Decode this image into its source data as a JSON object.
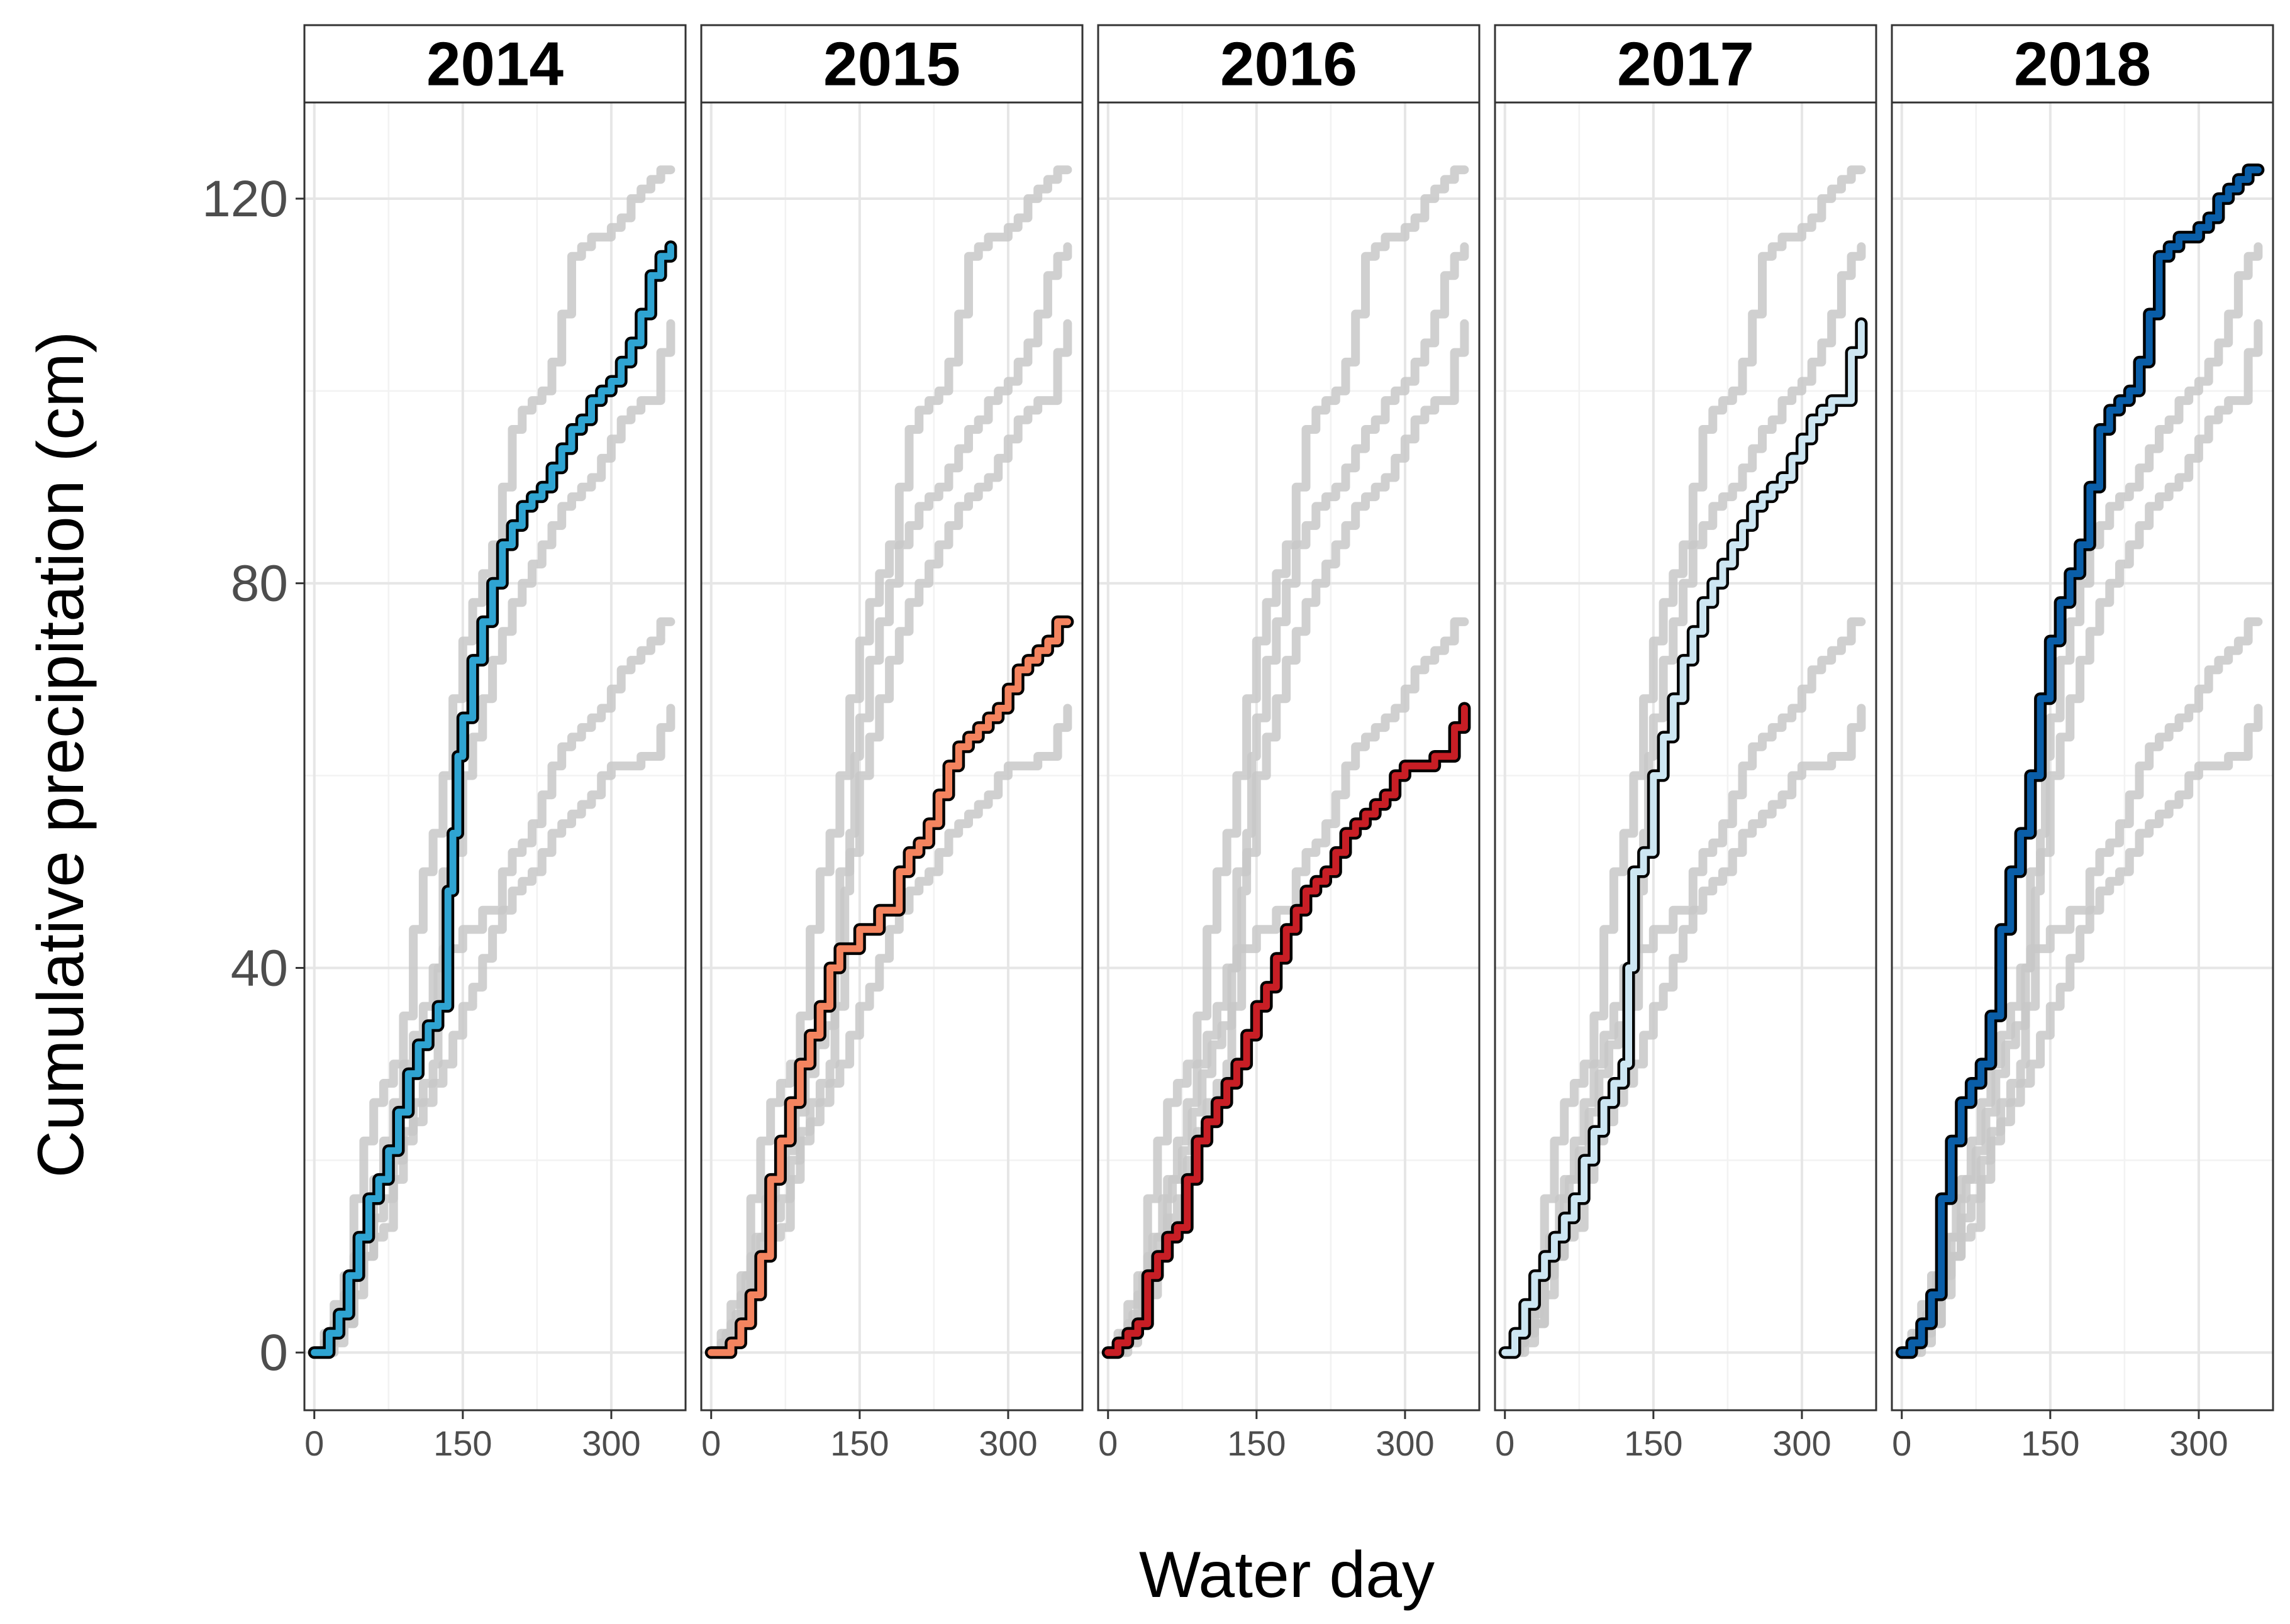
{
  "chart_data": {
    "type": "line",
    "title": "",
    "xlabel": "Water day",
    "ylabel": "Cumulative precipitation (cm)",
    "xlim": [
      -10,
      375
    ],
    "ylim": [
      -6,
      130
    ],
    "x_ticks": [
      0,
      150,
      300
    ],
    "x_tick_labels": [
      "0",
      "150",
      "300"
    ],
    "y_ticks": [
      0,
      40,
      80,
      120
    ],
    "y_tick_labels": [
      "0",
      "40",
      "80",
      "120"
    ],
    "grid": true,
    "facets": [
      "2014",
      "2015",
      "2016",
      "2017",
      "2018"
    ],
    "background_series_color": "#c8c8c8",
    "highlight_outline_color": "#000000",
    "series": [
      {
        "name": "2014",
        "color": "#2fa4d2",
        "x": [
          0,
          15,
          25,
          35,
          45,
          55,
          65,
          75,
          85,
          95,
          105,
          115,
          125,
          135,
          140,
          145,
          150,
          160,
          170,
          180,
          190,
          200,
          210,
          220,
          230,
          240,
          250,
          260,
          270,
          280,
          290,
          300,
          310,
          320,
          330,
          340,
          350,
          360
        ],
        "values": [
          0,
          2,
          4,
          8,
          12,
          16,
          18,
          21,
          25,
          29,
          32,
          34,
          36,
          48,
          54,
          62,
          66,
          72,
          76,
          80,
          84,
          86,
          88,
          89,
          90,
          92,
          94,
          96,
          97,
          99,
          100,
          101,
          103,
          105,
          108,
          112,
          114,
          115
        ]
      },
      {
        "name": "2015",
        "color": "#f4845f",
        "x": [
          0,
          10,
          20,
          30,
          40,
          50,
          60,
          70,
          80,
          90,
          100,
          110,
          120,
          130,
          150,
          170,
          190,
          200,
          210,
          220,
          230,
          240,
          250,
          260,
          270,
          280,
          290,
          300,
          310,
          320,
          330,
          340,
          350,
          360
        ],
        "values": [
          0,
          0,
          1,
          3,
          6,
          10,
          18,
          22,
          26,
          30,
          33,
          36,
          40,
          42,
          44,
          46,
          50,
          52,
          53,
          55,
          58,
          61,
          63,
          64,
          65,
          66,
          67,
          69,
          71,
          72,
          73,
          74,
          76,
          76
        ]
      },
      {
        "name": "2016",
        "color": "#c81e25",
        "x": [
          0,
          10,
          20,
          30,
          40,
          50,
          60,
          70,
          80,
          90,
          100,
          110,
          120,
          130,
          140,
          150,
          160,
          170,
          180,
          190,
          200,
          210,
          220,
          230,
          240,
          250,
          260,
          270,
          280,
          290,
          300,
          310,
          320,
          330,
          340,
          350,
          360
        ],
        "values": [
          0,
          1,
          2,
          3,
          8,
          10,
          12,
          13,
          18,
          22,
          24,
          26,
          28,
          30,
          33,
          36,
          38,
          41,
          44,
          46,
          48,
          49,
          50,
          52,
          54,
          55,
          56,
          57,
          58,
          60,
          61,
          61,
          61,
          62,
          62,
          65,
          67
        ]
      },
      {
        "name": "2017",
        "color": "#cde6f2",
        "x": [
          0,
          10,
          20,
          30,
          40,
          50,
          60,
          70,
          80,
          90,
          100,
          110,
          120,
          125,
          130,
          140,
          150,
          160,
          170,
          180,
          190,
          200,
          210,
          220,
          230,
          240,
          250,
          260,
          270,
          280,
          290,
          300,
          310,
          320,
          330,
          340,
          350,
          360
        ],
        "values": [
          0,
          2,
          5,
          8,
          10,
          12,
          14,
          16,
          20,
          23,
          26,
          28,
          30,
          40,
          50,
          52,
          60,
          64,
          68,
          72,
          75,
          78,
          80,
          82,
          84,
          86,
          88,
          89,
          90,
          91,
          93,
          95,
          97,
          98,
          99,
          99,
          104,
          107
        ]
      },
      {
        "name": "2018",
        "color": "#0a5ea8",
        "x": [
          0,
          10,
          20,
          30,
          40,
          50,
          60,
          70,
          80,
          90,
          100,
          110,
          120,
          130,
          140,
          150,
          160,
          170,
          180,
          190,
          200,
          210,
          220,
          230,
          240,
          250,
          260,
          270,
          280,
          290,
          300,
          310,
          320,
          330,
          340,
          350,
          360
        ],
        "values": [
          0,
          1,
          3,
          6,
          16,
          22,
          26,
          28,
          30,
          35,
          44,
          50,
          54,
          60,
          68,
          74,
          78,
          81,
          84,
          90,
          96,
          98,
          99,
          100,
          103,
          108,
          114,
          115,
          116,
          116,
          117,
          118,
          120,
          121,
          122,
          123,
          123
        ]
      }
    ]
  }
}
